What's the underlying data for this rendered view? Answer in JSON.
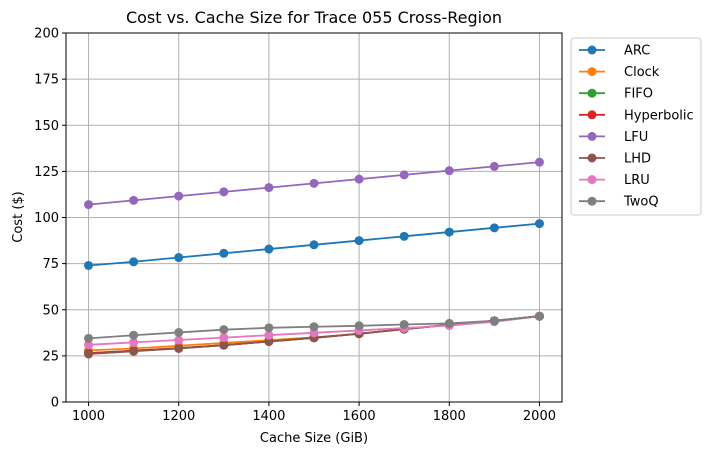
{
  "chart_data": {
    "type": "line",
    "title": "Cost vs. Cache Size for Trace 055 Cross-Region",
    "xlabel": "Cache Size (GiB)",
    "ylabel": "Cost ($)",
    "xlim": [
      950,
      2050
    ],
    "ylim": [
      0,
      200
    ],
    "xticks": [
      1000,
      1200,
      1400,
      1600,
      1800,
      2000
    ],
    "yticks": [
      0,
      25,
      50,
      75,
      100,
      125,
      150,
      175,
      200
    ],
    "grid": true,
    "legend_position": "outside-right-top",
    "x": [
      1000,
      1100,
      1200,
      1300,
      1400,
      1500,
      1600,
      1700,
      1800,
      1900,
      2000
    ],
    "series": [
      {
        "name": "ARC",
        "color": "#1f77b4",
        "values": [
          74,
          76,
          78.3,
          80.6,
          82.9,
          85.2,
          87.5,
          89.8,
          92.1,
          94.4,
          96.7
        ]
      },
      {
        "name": "Clock",
        "color": "#ff7f0e",
        "values": [
          28,
          29,
          30.5,
          32,
          33.5,
          35,
          37,
          39.5,
          42,
          44,
          46.5
        ]
      },
      {
        "name": "FIFO",
        "color": "#2ca02c",
        "values": [
          26.5,
          27.8,
          29.2,
          30.8,
          32.8,
          34.8,
          37,
          39.5,
          41.8,
          44,
          46.5
        ]
      },
      {
        "name": "Hyperbolic",
        "color": "#d62728",
        "values": [
          26.5,
          27.8,
          29.2,
          30.8,
          32.8,
          34.8,
          37,
          39.5,
          41.8,
          44,
          46.5
        ]
      },
      {
        "name": "LFU",
        "color": "#9467bd",
        "values": [
          107,
          109.3,
          111.6,
          113.9,
          116.2,
          118.5,
          120.8,
          123.1,
          125.4,
          127.7,
          130
        ]
      },
      {
        "name": "LHD",
        "color": "#8c564b",
        "values": [
          26,
          27.5,
          29,
          30.8,
          32.8,
          34.8,
          37,
          39.5,
          41.8,
          44,
          46.5
        ]
      },
      {
        "name": "LRU",
        "color": "#e377c2",
        "values": [
          31,
          32.3,
          33.6,
          34.9,
          36.2,
          37.5,
          38.8,
          40.1,
          41.4,
          43.5,
          46.5
        ]
      },
      {
        "name": "TwoQ",
        "color": "#7f7f7f",
        "values": [
          34.5,
          36.2,
          37.7,
          39.2,
          40.2,
          40.8,
          41.3,
          42,
          42.6,
          44,
          46.5
        ]
      }
    ]
  }
}
